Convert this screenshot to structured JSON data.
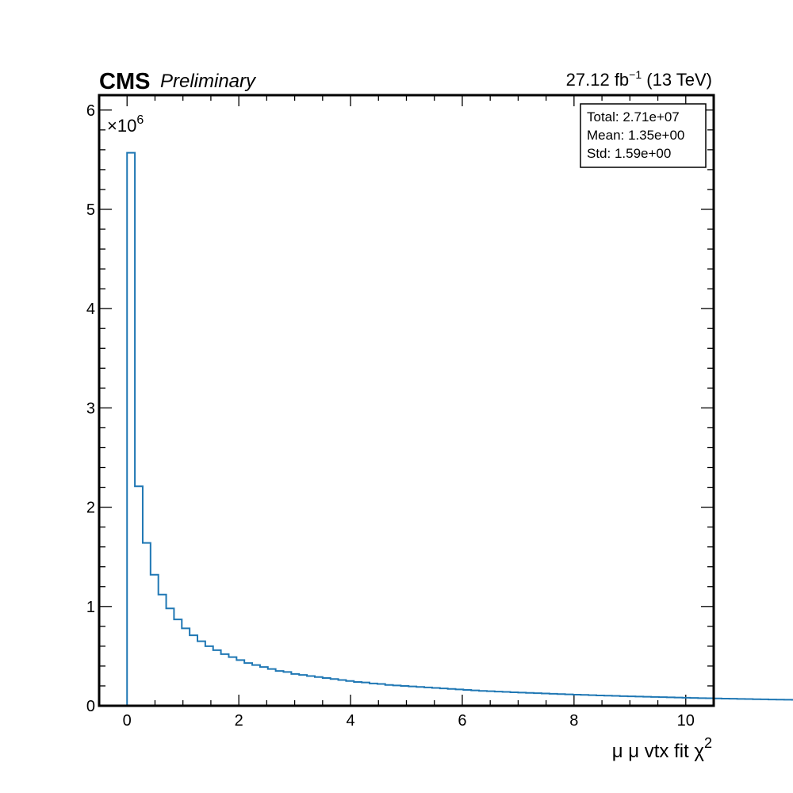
{
  "header": {
    "experiment": "CMS",
    "status": "Preliminary",
    "lumi_value": "27.12 fb",
    "lumi_exponent": "−1",
    "energy": " (13 TeV)"
  },
  "y_multiplier": {
    "prefix": "×10",
    "exponent": "6"
  },
  "stats_box": {
    "total": "Total: 2.71e+07",
    "mean": "Mean: 1.35e+00",
    "std": "Std: 1.59e+00"
  },
  "colors": {
    "histogram": "#1f77b4",
    "frame": "#000000"
  },
  "chart_data": {
    "type": "histogram",
    "xlabel_base": "μ μ vtx fit χ",
    "xlabel_exponent": "2",
    "ylabel": "",
    "xlim": [
      -0.5,
      10.5
    ],
    "ylim": [
      0,
      6.15
    ],
    "y_scale_note": "×10^6",
    "x_ticks": [
      0,
      2,
      4,
      6,
      8,
      10
    ],
    "y_ticks": [
      0,
      1,
      2,
      3,
      4,
      5,
      6
    ],
    "bin_width": 0.14,
    "bin_start": 0,
    "values": [
      5.57,
      2.21,
      1.64,
      1.32,
      1.12,
      0.98,
      0.87,
      0.78,
      0.71,
      0.65,
      0.6,
      0.56,
      0.52,
      0.49,
      0.46,
      0.43,
      0.41,
      0.39,
      0.37,
      0.35,
      0.34,
      0.32,
      0.31,
      0.3,
      0.29,
      0.28,
      0.27,
      0.26,
      0.25,
      0.24,
      0.235,
      0.225,
      0.22,
      0.21,
      0.205,
      0.2,
      0.195,
      0.19,
      0.185,
      0.18,
      0.175,
      0.17,
      0.165,
      0.16,
      0.155,
      0.15,
      0.147,
      0.143,
      0.14,
      0.136,
      0.133,
      0.13,
      0.127,
      0.124,
      0.121,
      0.118,
      0.115,
      0.112,
      0.11,
      0.107,
      0.104,
      0.102,
      0.1,
      0.097,
      0.095,
      0.093,
      0.091,
      0.089,
      0.087,
      0.085,
      0.083,
      0.081,
      0.079,
      0.077,
      0.076,
      0.074,
      0.072,
      0.071,
      0.069,
      0.068,
      0.066,
      0.065,
      0.063,
      0.062,
      0.061,
      0.06,
      0.058,
      0.057,
      0.056,
      0.055,
      0.054,
      0.053,
      0.052,
      0.051,
      0.05,
      0.02
    ]
  }
}
